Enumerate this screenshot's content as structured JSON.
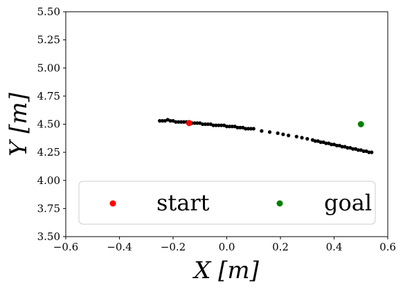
{
  "chart_data": {
    "type": "scatter",
    "xlabel": "X [m]",
    "ylabel": "Y [m]",
    "xlim": [
      -0.6,
      0.6
    ],
    "ylim": [
      3.5,
      5.5
    ],
    "xticks": [
      "−0.6",
      "−0.4",
      "−0.2",
      "0.0",
      "0.2",
      "0.4",
      "0.6"
    ],
    "yticks": [
      "3.50",
      "3.75",
      "4.00",
      "4.25",
      "4.50",
      "4.75",
      "5.00",
      "5.25",
      "5.50"
    ],
    "legend_position": "lower-center",
    "series": [
      {
        "name": "start",
        "color": "#ff0000",
        "points": [
          [
            -0.14,
            4.51
          ]
        ]
      },
      {
        "name": "goal",
        "color": "#008000",
        "points": [
          [
            0.5,
            4.5
          ]
        ]
      },
      {
        "color": "#000000",
        "points": [
          [
            -0.25,
            4.53
          ],
          [
            -0.24,
            4.53
          ],
          [
            -0.23,
            4.53
          ],
          [
            -0.22,
            4.54
          ],
          [
            -0.21,
            4.53
          ],
          [
            -0.2,
            4.53
          ],
          [
            -0.19,
            4.52
          ],
          [
            -0.18,
            4.52
          ],
          [
            -0.17,
            4.52
          ],
          [
            -0.16,
            4.52
          ],
          [
            -0.15,
            4.52
          ],
          [
            -0.14,
            4.51
          ],
          [
            -0.13,
            4.51
          ],
          [
            -0.12,
            4.51
          ],
          [
            -0.11,
            4.51
          ],
          [
            -0.1,
            4.51
          ],
          [
            -0.09,
            4.5
          ],
          [
            -0.08,
            4.5
          ],
          [
            -0.07,
            4.5
          ],
          [
            -0.06,
            4.5
          ],
          [
            -0.05,
            4.49
          ],
          [
            -0.04,
            4.49
          ],
          [
            -0.03,
            4.49
          ],
          [
            -0.02,
            4.49
          ],
          [
            -0.01,
            4.49
          ],
          [
            0.0,
            4.48
          ],
          [
            0.01,
            4.48
          ],
          [
            0.02,
            4.48
          ],
          [
            0.03,
            4.48
          ],
          [
            0.04,
            4.47
          ],
          [
            0.05,
            4.47
          ],
          [
            0.06,
            4.47
          ],
          [
            0.07,
            4.46
          ],
          [
            0.08,
            4.46
          ],
          [
            0.09,
            4.46
          ],
          [
            0.1,
            4.46
          ],
          [
            0.13,
            4.44
          ],
          [
            0.16,
            4.43
          ],
          [
            0.19,
            4.42
          ],
          [
            0.21,
            4.41
          ],
          [
            0.23,
            4.4
          ],
          [
            0.26,
            4.39
          ],
          [
            0.28,
            4.38
          ],
          [
            0.3,
            4.37
          ],
          [
            0.32,
            4.36
          ],
          [
            0.33,
            4.35
          ],
          [
            0.34,
            4.35
          ],
          [
            0.35,
            4.34
          ],
          [
            0.36,
            4.34
          ],
          [
            0.37,
            4.33
          ],
          [
            0.38,
            4.33
          ],
          [
            0.39,
            4.32
          ],
          [
            0.4,
            4.32
          ],
          [
            0.41,
            4.31
          ],
          [
            0.42,
            4.31
          ],
          [
            0.43,
            4.3
          ],
          [
            0.44,
            4.3
          ],
          [
            0.45,
            4.29
          ],
          [
            0.46,
            4.29
          ],
          [
            0.47,
            4.28
          ],
          [
            0.48,
            4.28
          ],
          [
            0.49,
            4.27
          ],
          [
            0.5,
            4.27
          ],
          [
            0.51,
            4.26
          ],
          [
            0.52,
            4.26
          ],
          [
            0.53,
            4.25
          ],
          [
            0.54,
            4.25
          ]
        ]
      }
    ]
  }
}
